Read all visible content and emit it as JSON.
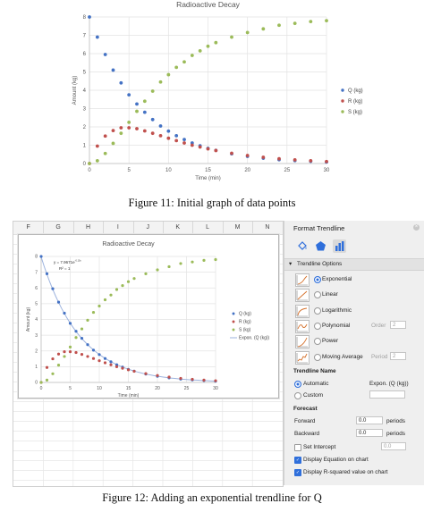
{
  "figure11": {
    "caption": "Figure 11:  Initial graph of data points"
  },
  "figure12": {
    "caption": "Figure 12:  Adding an exponential trendline for Q"
  },
  "chart_data": [
    {
      "type": "scatter",
      "title": "Radioactive Decay",
      "xlabel": "Time (min)",
      "ylabel": "Amount (kg)",
      "xlim": [
        0,
        30
      ],
      "ylim": [
        0,
        8
      ],
      "xticks": [
        0,
        5,
        10,
        15,
        20,
        25,
        30
      ],
      "yticks": [
        0,
        1,
        2,
        3,
        4,
        5,
        6,
        7,
        8
      ],
      "legend_position": "right",
      "grid": true,
      "series": [
        {
          "name": "Q (kg)",
          "color": "#4472c4",
          "x": [
            0,
            1,
            2,
            3,
            4,
            5,
            6,
            7,
            8,
            9,
            10,
            11,
            12,
            13,
            14,
            15,
            16,
            18,
            20,
            22,
            24,
            26,
            28,
            30
          ],
          "y": [
            8.0,
            6.9,
            5.95,
            5.1,
            4.4,
            3.75,
            3.25,
            2.8,
            2.4,
            2.05,
            1.77,
            1.52,
            1.31,
            1.12,
            0.97,
            0.83,
            0.72,
            0.53,
            0.39,
            0.29,
            0.21,
            0.16,
            0.12,
            0.08
          ]
        },
        {
          "name": "R (kg)",
          "color": "#c0504d",
          "x": [
            0,
            1,
            2,
            3,
            4,
            5,
            6,
            7,
            8,
            9,
            10,
            11,
            12,
            13,
            14,
            15,
            16,
            18,
            20,
            22,
            24,
            26,
            28,
            30
          ],
          "y": [
            0.0,
            0.95,
            1.5,
            1.8,
            1.95,
            1.95,
            1.9,
            1.78,
            1.65,
            1.52,
            1.38,
            1.25,
            1.12,
            1.0,
            0.9,
            0.8,
            0.71,
            0.56,
            0.44,
            0.34,
            0.26,
            0.2,
            0.15,
            0.11
          ]
        },
        {
          "name": "S (kg)",
          "color": "#9bbb59",
          "x": [
            0,
            1,
            2,
            3,
            4,
            5,
            6,
            7,
            8,
            9,
            10,
            11,
            12,
            13,
            14,
            15,
            16,
            18,
            20,
            22,
            24,
            26,
            28,
            30
          ],
          "y": [
            0.0,
            0.15,
            0.55,
            1.1,
            1.65,
            2.25,
            2.85,
            3.4,
            3.95,
            4.45,
            4.85,
            5.25,
            5.55,
            5.9,
            6.15,
            6.4,
            6.6,
            6.9,
            7.15,
            7.35,
            7.55,
            7.65,
            7.75,
            7.8
          ]
        }
      ]
    },
    {
      "type": "scatter",
      "title": "Radioactive Decay",
      "xlabel": "Time (min)",
      "ylabel": "Amount (kg)",
      "xlim": [
        0,
        30
      ],
      "ylim": [
        0,
        8
      ],
      "xticks": [
        0,
        5,
        10,
        15,
        20,
        25,
        30
      ],
      "yticks": [
        0,
        1,
        2,
        3,
        4,
        5,
        6,
        7,
        8
      ],
      "legend_position": "right",
      "grid": true,
      "annotation": {
        "equation": "y = 7.9671e",
        "exponent": "-0.15x",
        "r2": "R² = 1"
      },
      "series": [
        {
          "name": "Q (kg)",
          "color": "#4472c4",
          "x": [
            0,
            1,
            2,
            3,
            4,
            5,
            6,
            7,
            8,
            9,
            10,
            11,
            12,
            13,
            14,
            15,
            16,
            18,
            20,
            22,
            24,
            26,
            28,
            30
          ],
          "y": [
            8.0,
            6.9,
            5.95,
            5.1,
            4.4,
            3.75,
            3.25,
            2.8,
            2.4,
            2.05,
            1.77,
            1.52,
            1.31,
            1.12,
            0.97,
            0.83,
            0.72,
            0.53,
            0.39,
            0.29,
            0.21,
            0.16,
            0.12,
            0.08
          ]
        },
        {
          "name": "R (kg)",
          "color": "#c0504d",
          "x": [
            0,
            1,
            2,
            3,
            4,
            5,
            6,
            7,
            8,
            9,
            10,
            11,
            12,
            13,
            14,
            15,
            16,
            18,
            20,
            22,
            24,
            26,
            28,
            30
          ],
          "y": [
            0.0,
            0.95,
            1.5,
            1.8,
            1.95,
            1.95,
            1.9,
            1.78,
            1.65,
            1.52,
            1.38,
            1.25,
            1.12,
            1.0,
            0.9,
            0.8,
            0.71,
            0.56,
            0.44,
            0.34,
            0.26,
            0.2,
            0.15,
            0.11
          ]
        },
        {
          "name": "S (kg)",
          "color": "#9bbb59",
          "x": [
            0,
            1,
            2,
            3,
            4,
            5,
            6,
            7,
            8,
            9,
            10,
            11,
            12,
            13,
            14,
            15,
            16,
            18,
            20,
            22,
            24,
            26,
            28,
            30
          ],
          "y": [
            0.0,
            0.15,
            0.55,
            1.1,
            1.65,
            2.25,
            2.85,
            3.4,
            3.95,
            4.45,
            4.85,
            5.25,
            5.55,
            5.9,
            6.15,
            6.4,
            6.6,
            6.9,
            7.15,
            7.35,
            7.55,
            7.65,
            7.75,
            7.8
          ]
        },
        {
          "name": "Expon. (Q (kg))",
          "color": "#4472c4",
          "trendline": {
            "type": "exponential",
            "a": 7.9671,
            "b": -0.15
          }
        }
      ]
    }
  ],
  "spreadsheet": {
    "columns": [
      "F",
      "G",
      "H",
      "I",
      "J",
      "K",
      "L",
      "M",
      "N"
    ]
  },
  "panel": {
    "title": "Format Trendline",
    "close_icon": "close-icon",
    "tabs": [
      {
        "icon": "fill-bucket-icon"
      },
      {
        "icon": "pentagon-effects-icon"
      },
      {
        "icon": "bar-chart-options-icon",
        "active": true
      }
    ],
    "section_title": "Trendline Options",
    "options": [
      {
        "label": "Exponential",
        "selected": true
      },
      {
        "label": "Linear",
        "selected": false
      },
      {
        "label": "Logarithmic",
        "selected": false
      },
      {
        "label": "Polynomial",
        "selected": false,
        "extra_label": "Order",
        "extra_value": "2"
      },
      {
        "label": "Power",
        "selected": false
      },
      {
        "label": "Moving Average",
        "selected": false,
        "extra_label": "Period",
        "extra_value": "2"
      }
    ],
    "name_section": "Trendline Name",
    "name_automatic": "Automatic",
    "name_automatic_value": "Expon. (Q (kg))",
    "name_custom": "Custom",
    "forecast_section": "Forecast",
    "forward_label": "Forward",
    "forward_value": "0.0",
    "forward_unit": "periods",
    "backward_label": "Backward",
    "backward_value": "0.0",
    "backward_unit": "periods",
    "set_intercept_label": "Set Intercept",
    "set_intercept_value": "0.0",
    "display_equation_label": "Display Equation on chart",
    "display_r2_label": "Display R-squared value on chart"
  }
}
